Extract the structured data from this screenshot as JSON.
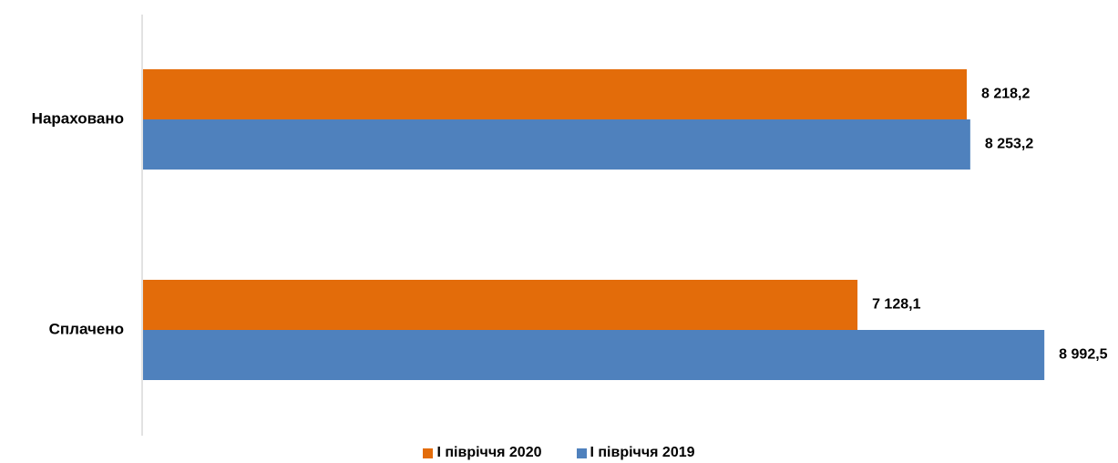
{
  "chart_data": {
    "type": "bar",
    "orientation": "horizontal",
    "categories": [
      "Нараховано",
      "Сплачено"
    ],
    "series": [
      {
        "name": "І півріччя 2020",
        "color": "#E36C0A",
        "values": [
          8218.2,
          7128.1
        ],
        "labels": [
          "8 218,2",
          "7 128,1"
        ]
      },
      {
        "name": "І півріччя 2019",
        "color": "#4F81BD",
        "values": [
          8253.2,
          8992.5
        ],
        "labels": [
          "8 253,2",
          "8 992,5"
        ]
      }
    ],
    "xlim": [
      0,
      9000
    ],
    "grid": false,
    "legend_position": "bottom"
  }
}
